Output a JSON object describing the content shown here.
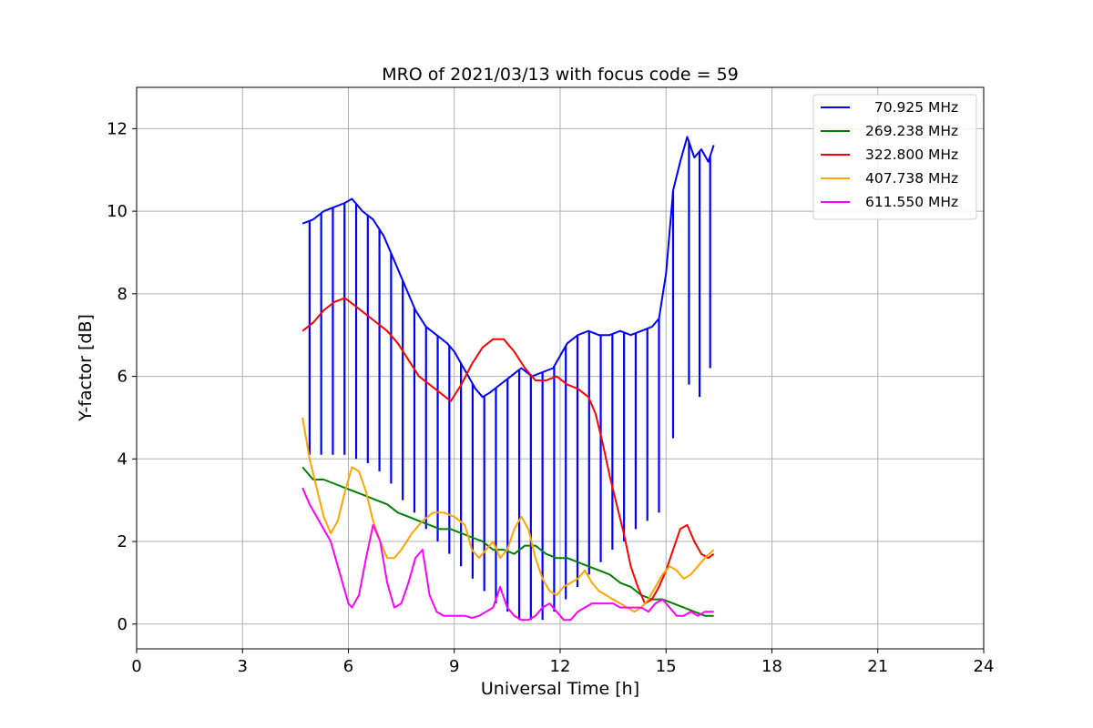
{
  "chart_data": {
    "type": "line",
    "title": "MRO of 2021/03/13 with focus code = 59",
    "xlabel": "Universal Time [h]",
    "ylabel": "Y-factor [dB]",
    "xlim": [
      0,
      24
    ],
    "ylim": [
      -0.6,
      13
    ],
    "xticks": [
      0,
      3,
      6,
      9,
      12,
      15,
      18,
      21,
      24
    ],
    "yticks": [
      0,
      2,
      4,
      6,
      8,
      10,
      12
    ],
    "grid": true,
    "legend_position": "top-right",
    "series": [
      {
        "name": "  70.925 MHz",
        "color": "#0000ff",
        "dips": {
          "x": [
            4.9,
            5.23,
            5.56,
            5.89,
            6.22,
            6.55,
            6.88,
            7.21,
            7.54,
            7.87,
            8.2,
            8.53,
            8.86,
            9.19,
            9.52,
            9.85,
            10.18,
            10.51,
            10.84,
            11.17,
            11.5,
            11.83,
            12.16,
            12.49,
            12.82,
            13.15,
            13.48,
            13.81,
            14.14,
            14.47,
            14.8,
            15.2,
            15.65,
            15.95,
            16.25
          ],
          "y": [
            4.1,
            4.1,
            4.1,
            4.1,
            4.0,
            3.9,
            3.7,
            3.4,
            3.0,
            2.7,
            2.3,
            2.0,
            1.7,
            1.4,
            1.1,
            0.8,
            0.5,
            0.3,
            0.1,
            0.1,
            0.1,
            0.3,
            0.6,
            0.9,
            1.2,
            1.5,
            1.8,
            2.0,
            2.3,
            2.5,
            2.7,
            4.5,
            5.8,
            5.5,
            6.2
          ]
        },
        "x": [
          4.7,
          5.0,
          5.3,
          5.6,
          5.9,
          6.1,
          6.4,
          6.7,
          7.0,
          7.3,
          7.6,
          7.9,
          8.2,
          8.5,
          8.8,
          9.0,
          9.2,
          9.4,
          9.6,
          9.8,
          10.0,
          10.3,
          10.6,
          10.9,
          11.2,
          11.5,
          11.8,
          12.0,
          12.2,
          12.5,
          12.8,
          13.1,
          13.4,
          13.7,
          14.0,
          14.3,
          14.6,
          14.8,
          15.0,
          15.2,
          15.4,
          15.6,
          15.8,
          16.0,
          16.2,
          16.35
        ],
        "y": [
          9.7,
          9.8,
          10.0,
          10.1,
          10.2,
          10.3,
          10.0,
          9.8,
          9.4,
          8.8,
          8.2,
          7.6,
          7.2,
          7.0,
          6.8,
          6.6,
          6.3,
          6.0,
          5.7,
          5.5,
          5.6,
          5.8,
          6.0,
          6.2,
          6.0,
          6.1,
          6.2,
          6.5,
          6.8,
          7.0,
          7.1,
          7.0,
          7.0,
          7.1,
          7.0,
          7.1,
          7.2,
          7.4,
          8.5,
          10.5,
          11.2,
          11.8,
          11.3,
          11.5,
          11.2,
          11.6
        ]
      },
      {
        "name": "269.238 MHz",
        "color": "#008000",
        "x": [
          4.7,
          5.0,
          5.3,
          5.6,
          5.9,
          6.2,
          6.5,
          6.8,
          7.1,
          7.4,
          7.7,
          8.0,
          8.3,
          8.6,
          8.9,
          9.2,
          9.5,
          9.8,
          10.1,
          10.4,
          10.7,
          11.0,
          11.3,
          11.6,
          11.9,
          12.2,
          12.5,
          12.8,
          13.1,
          13.4,
          13.7,
          14.0,
          14.3,
          14.6,
          14.9,
          15.2,
          15.5,
          15.8,
          16.1,
          16.35
        ],
        "y": [
          3.8,
          3.5,
          3.5,
          3.4,
          3.3,
          3.2,
          3.1,
          3.0,
          2.9,
          2.7,
          2.6,
          2.5,
          2.4,
          2.3,
          2.3,
          2.2,
          2.1,
          2.0,
          1.8,
          1.8,
          1.7,
          1.9,
          1.9,
          1.7,
          1.6,
          1.6,
          1.5,
          1.4,
          1.3,
          1.2,
          1.0,
          0.9,
          0.7,
          0.6,
          0.6,
          0.5,
          0.4,
          0.3,
          0.2,
          0.2
        ]
      },
      {
        "name": "322.800 MHz",
        "color": "#ff0000",
        "x": [
          4.7,
          5.0,
          5.3,
          5.6,
          5.9,
          6.2,
          6.5,
          6.8,
          7.1,
          7.4,
          7.7,
          8.0,
          8.3,
          8.6,
          8.9,
          9.2,
          9.5,
          9.8,
          10.1,
          10.4,
          10.7,
          11.0,
          11.3,
          11.6,
          11.9,
          12.2,
          12.5,
          12.8,
          13.0,
          13.2,
          13.4,
          13.6,
          13.8,
          14.0,
          14.2,
          14.4,
          14.6,
          14.8,
          15.0,
          15.2,
          15.4,
          15.6,
          15.8,
          16.0,
          16.2,
          16.35
        ],
        "y": [
          7.1,
          7.3,
          7.6,
          7.8,
          7.9,
          7.7,
          7.5,
          7.3,
          7.1,
          6.8,
          6.4,
          6.0,
          5.8,
          5.6,
          5.4,
          5.8,
          6.3,
          6.7,
          6.9,
          6.9,
          6.6,
          6.2,
          5.9,
          5.9,
          6.0,
          5.8,
          5.7,
          5.5,
          5.1,
          4.4,
          3.6,
          2.9,
          2.2,
          1.4,
          0.9,
          0.5,
          0.6,
          0.9,
          1.3,
          1.8,
          2.3,
          2.4,
          2.0,
          1.7,
          1.6,
          1.7
        ]
      },
      {
        "name": "407.738 MHz",
        "color": "#ffa500",
        "x": [
          4.7,
          4.9,
          5.1,
          5.3,
          5.5,
          5.7,
          5.9,
          6.1,
          6.3,
          6.5,
          6.7,
          6.9,
          7.1,
          7.3,
          7.5,
          7.8,
          8.1,
          8.4,
          8.7,
          9.0,
          9.3,
          9.5,
          9.7,
          9.9,
          10.1,
          10.3,
          10.5,
          10.7,
          10.9,
          11.1,
          11.3,
          11.5,
          11.7,
          11.9,
          12.1,
          12.3,
          12.5,
          12.7,
          12.9,
          13.1,
          13.3,
          13.5,
          13.7,
          13.9,
          14.1,
          14.3,
          14.5,
          14.7,
          14.9,
          15.1,
          15.3,
          15.5,
          15.7,
          15.9,
          16.1,
          16.35
        ],
        "y": [
          5.0,
          4.0,
          3.3,
          2.6,
          2.2,
          2.5,
          3.2,
          3.8,
          3.7,
          3.2,
          2.5,
          2.0,
          1.6,
          1.6,
          1.8,
          2.2,
          2.5,
          2.7,
          2.7,
          2.6,
          2.4,
          1.8,
          1.6,
          1.8,
          2.0,
          1.6,
          1.8,
          2.3,
          2.6,
          2.3,
          1.6,
          1.1,
          0.8,
          0.7,
          0.9,
          1.0,
          1.1,
          1.3,
          1.0,
          0.8,
          0.7,
          0.6,
          0.5,
          0.4,
          0.3,
          0.4,
          0.6,
          0.9,
          1.2,
          1.4,
          1.3,
          1.1,
          1.2,
          1.4,
          1.6,
          1.8
        ]
      },
      {
        "name": "611.550 MHz",
        "color": "#ff00ff",
        "x": [
          4.7,
          4.9,
          5.1,
          5.3,
          5.5,
          5.7,
          5.9,
          6.0,
          6.1,
          6.3,
          6.5,
          6.7,
          6.9,
          7.1,
          7.3,
          7.5,
          7.7,
          7.9,
          8.1,
          8.3,
          8.5,
          8.7,
          8.9,
          9.1,
          9.3,
          9.5,
          9.7,
          9.9,
          10.1,
          10.3,
          10.5,
          10.7,
          10.9,
          11.1,
          11.3,
          11.5,
          11.7,
          11.9,
          12.1,
          12.3,
          12.5,
          12.7,
          12.9,
          13.1,
          13.3,
          13.5,
          13.7,
          13.9,
          14.1,
          14.3,
          14.5,
          14.7,
          14.9,
          15.1,
          15.3,
          15.5,
          15.7,
          15.9,
          16.1,
          16.35
        ],
        "y": [
          3.3,
          2.9,
          2.6,
          2.3,
          2.0,
          1.4,
          0.8,
          0.5,
          0.4,
          0.7,
          1.6,
          2.4,
          2.0,
          1.0,
          0.4,
          0.5,
          1.0,
          1.6,
          1.8,
          0.7,
          0.3,
          0.2,
          0.2,
          0.2,
          0.2,
          0.15,
          0.2,
          0.3,
          0.4,
          0.9,
          0.4,
          0.2,
          0.1,
          0.1,
          0.2,
          0.4,
          0.5,
          0.3,
          0.1,
          0.1,
          0.3,
          0.4,
          0.5,
          0.5,
          0.5,
          0.5,
          0.4,
          0.4,
          0.4,
          0.4,
          0.3,
          0.5,
          0.6,
          0.4,
          0.2,
          0.2,
          0.3,
          0.2,
          0.3,
          0.3
        ]
      }
    ]
  }
}
